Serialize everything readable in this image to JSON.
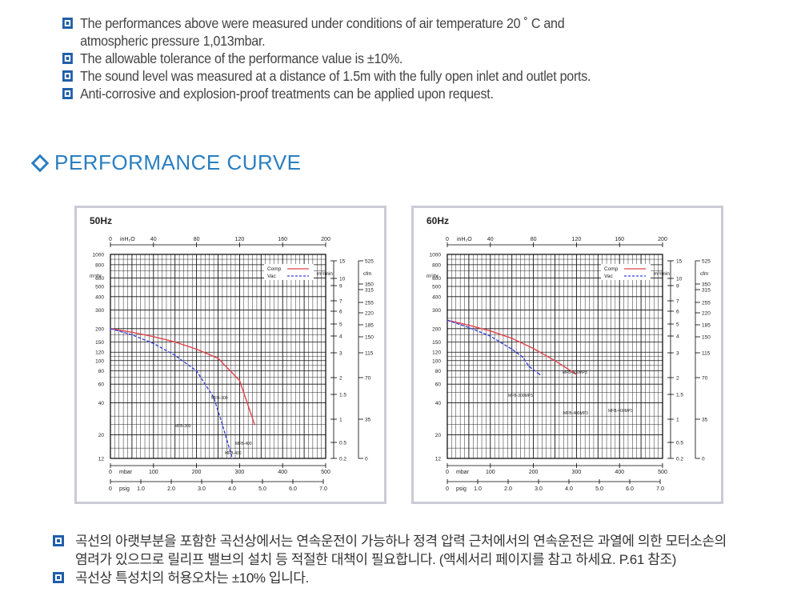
{
  "notes": [
    {
      "line1": "The performances above were measured under conditions of air temperature 20 ˚ C and",
      "line2": "atmospheric pressure 1,013mbar."
    },
    {
      "line1": "The allowable tolerance of the performance value is ±10%."
    },
    {
      "line1": "The sound level was measured at a distance of 1.5m with the fully open inlet and outlet ports."
    },
    {
      "line1": "Anti-corrosive and explosion-proof treatments can be applied upon request."
    }
  ],
  "section_title": "PERFORMANCE CURVE",
  "bottom_notes": [
    {
      "line1": "곡선의 아랫부분을 포함한 곡선상에서는 연속운전이 가능하나 정격 압력 근처에서의 연속운전은 과열에 의한 모터소손의",
      "line2": "염려가 있으므로 릴리프 밸브의 설치 등 적절한 대책이 필요합니다. (액세서리 페이지를 참고 하세요. P.61 참조)"
    },
    {
      "line1": "곡선상 특성치의 허용오차는 ±10% 입니다."
    }
  ],
  "colors": {
    "comp": "#e0434a",
    "vac": "#3b43d8",
    "accent": "#2a7fc0",
    "bullet": "#1f5ea8",
    "panel_border": "#c9ccd6"
  },
  "chart_data": [
    {
      "type": "line",
      "title": "50Hz",
      "x_top_unit": "inH₂O",
      "x_top_ticks": [
        "0",
        "40",
        "80",
        "120",
        "160",
        "200"
      ],
      "x_mbar_unit": "mbar",
      "x_mbar_ticks": [
        "0",
        "100",
        "200",
        "300",
        "400",
        "500"
      ],
      "x_psig_unit": "psig",
      "x_psig_ticks": [
        "0",
        "1.0",
        "2.0",
        "3.0",
        "4.0",
        "5.0",
        "6.0",
        "7.0"
      ],
      "y_left_unit": "m³/hr",
      "y_left_ticks": [
        "1000",
        "800",
        "600",
        "500",
        "400",
        "300",
        "200",
        "150",
        "120",
        "100",
        "80",
        "60",
        "40",
        "20",
        "12"
      ],
      "y_mid_unit": "m³/min",
      "y_mid_ticks": [
        "15",
        "10",
        "9",
        "7",
        "6",
        "5",
        "4",
        "3",
        "2",
        "1.5",
        "1",
        "0.5",
        "0.2"
      ],
      "y_right_unit": "cfm",
      "y_right_ticks": [
        "525",
        "350",
        "315",
        "255",
        "220",
        "185",
        "150",
        "115",
        "70",
        "35",
        "0"
      ],
      "xlim": [
        0,
        500
      ],
      "ylim": [
        12,
        1000
      ],
      "legend": "top-right",
      "series": [
        {
          "name": "Comp",
          "x": [
            0,
            50,
            100,
            150,
            200,
            250,
            300,
            335
          ],
          "y": [
            200,
            185,
            168,
            150,
            128,
            105,
            65,
            25
          ]
        },
        {
          "name": "Vac",
          "x": [
            0,
            50,
            100,
            150,
            200,
            240,
            260,
            283
          ],
          "y": [
            200,
            175,
            145,
            112,
            80,
            45,
            25,
            12
          ]
        }
      ],
      "annotations": [
        "MFB-300",
        "MFB-300",
        "MFB-400",
        "MFB-400"
      ]
    },
    {
      "type": "line",
      "title": "60Hz",
      "x_top_unit": "inH₂O",
      "x_top_ticks": [
        "0",
        "40",
        "80",
        "120",
        "160",
        "200"
      ],
      "x_mbar_unit": "mbar",
      "x_mbar_ticks": [
        "0",
        "100",
        "200",
        "300",
        "400",
        "500"
      ],
      "x_psig_unit": "psig",
      "x_psig_ticks": [
        "0",
        "1.0",
        "2.0",
        "3.0",
        "4.0",
        "5.0",
        "6.0",
        "7.0"
      ],
      "y_left_unit": "m³/hr",
      "y_left_ticks": [
        "1000",
        "800",
        "600",
        "500",
        "400",
        "300",
        "200",
        "150",
        "120",
        "100",
        "80",
        "60",
        "40",
        "20",
        "12"
      ],
      "y_mid_unit": "m³/min",
      "y_mid_ticks": [
        "15",
        "10",
        "9",
        "7",
        "6",
        "5",
        "4",
        "3",
        "2",
        "1.5",
        "1",
        "0.5",
        "0.2"
      ],
      "y_right_unit": "cfm",
      "y_right_ticks": [
        "525",
        "350",
        "315",
        "255",
        "220",
        "185",
        "150",
        "115",
        "70",
        "35",
        "0"
      ],
      "xlim": [
        0,
        500
      ],
      "ylim": [
        12,
        1000
      ],
      "legend": "top-right",
      "series": [
        {
          "name": "Comp",
          "x": [
            0,
            50,
            100,
            150,
            200,
            250,
            300
          ],
          "y": [
            240,
            215,
            190,
            162,
            130,
            100,
            74
          ]
        },
        {
          "name": "Vac",
          "x": [
            0,
            50,
            100,
            150,
            175,
            190,
            215
          ],
          "y": [
            240,
            205,
            170,
            128,
            108,
            88,
            74
          ]
        }
      ],
      "annotations": [
        "MFB-300MP3",
        "MFB-300MP3",
        "MFB-400MP3",
        "MFB-400MP3"
      ]
    }
  ]
}
